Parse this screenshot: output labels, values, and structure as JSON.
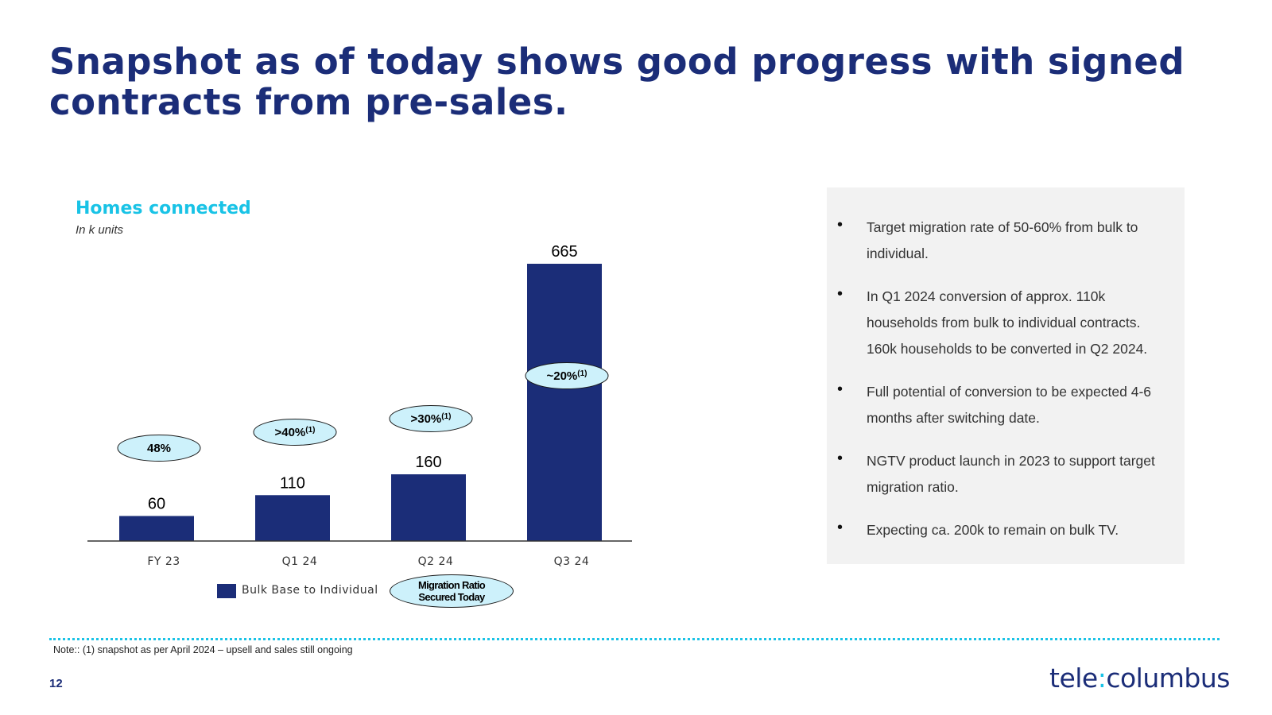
{
  "slide": {
    "title": "Snapshot as of today shows good progress with signed contracts from pre-sales.",
    "page_number": "12",
    "note": "Note:: (1) snapshot as per April 2024 – upsell and sales still ongoing",
    "logo_text": "telecolumbus"
  },
  "chart_data": {
    "type": "bar",
    "title": "Homes connected",
    "subtitle": "In k units",
    "categories": [
      "FY 23",
      "Q1 24",
      "Q2 24",
      "Q3 24"
    ],
    "series": [
      {
        "name": "Bulk Base to Individual",
        "values": [
          60,
          110,
          160,
          665
        ],
        "color": "#1b2d78"
      }
    ],
    "migration_ratio": {
      "name": "Migration Ratio Secured Today",
      "labels": [
        {
          "text": "48%",
          "sup": ""
        },
        {
          "text": ">40%",
          "sup": "(1)"
        },
        {
          "text": ">30%",
          "sup": "(1)"
        },
        {
          "text": "~20%",
          "sup": "(1)"
        }
      ],
      "fill": "#cdf1fb"
    },
    "ylim": [
      0,
      665
    ],
    "grid": false,
    "legend": "bottom"
  },
  "legend": {
    "bars_label": "Bulk Base to Individual",
    "oval_line1": "Migration Ratio",
    "oval_line2": "Secured Today"
  },
  "bullets": [
    "Target migration rate of 50-60% from bulk to individual.",
    "In Q1 2024 conversion of approx. 110k households from bulk to individual contracts. 160k households to be converted in Q2 2024.",
    "Full potential of conversion to be expected 4-6 months after switching date.",
    "NGTV product launch in 2023 to support target migration ratio.",
    "Expecting ca. 200k to remain on bulk TV."
  ],
  "colors": {
    "navy": "#1b2d78",
    "cyan": "#19c3e6",
    "panel": "#f2f2f2"
  }
}
